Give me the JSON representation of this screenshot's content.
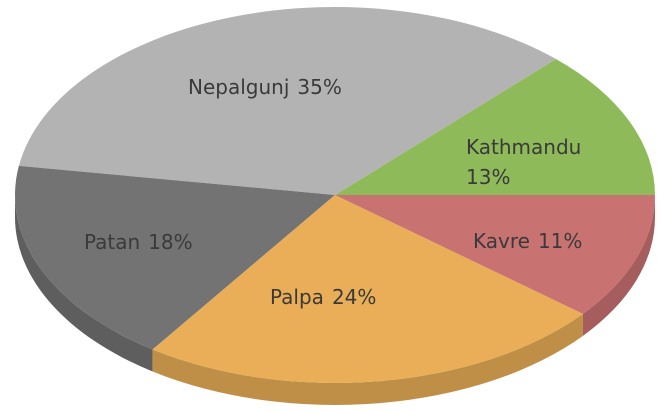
{
  "chart_data": {
    "type": "pie",
    "categories": [
      "Kathmandu",
      "Nepalgunj",
      "Patan",
      "Palpa",
      "Kavre"
    ],
    "values": [
      13,
      35,
      18,
      24,
      11
    ],
    "value_labels": [
      "13%",
      "35%",
      "18%",
      "24%",
      "11%"
    ],
    "colors": [
      "#8fba5a",
      "#b3b3b3",
      "#737373",
      "#e9ae57",
      "#c97272"
    ]
  }
}
